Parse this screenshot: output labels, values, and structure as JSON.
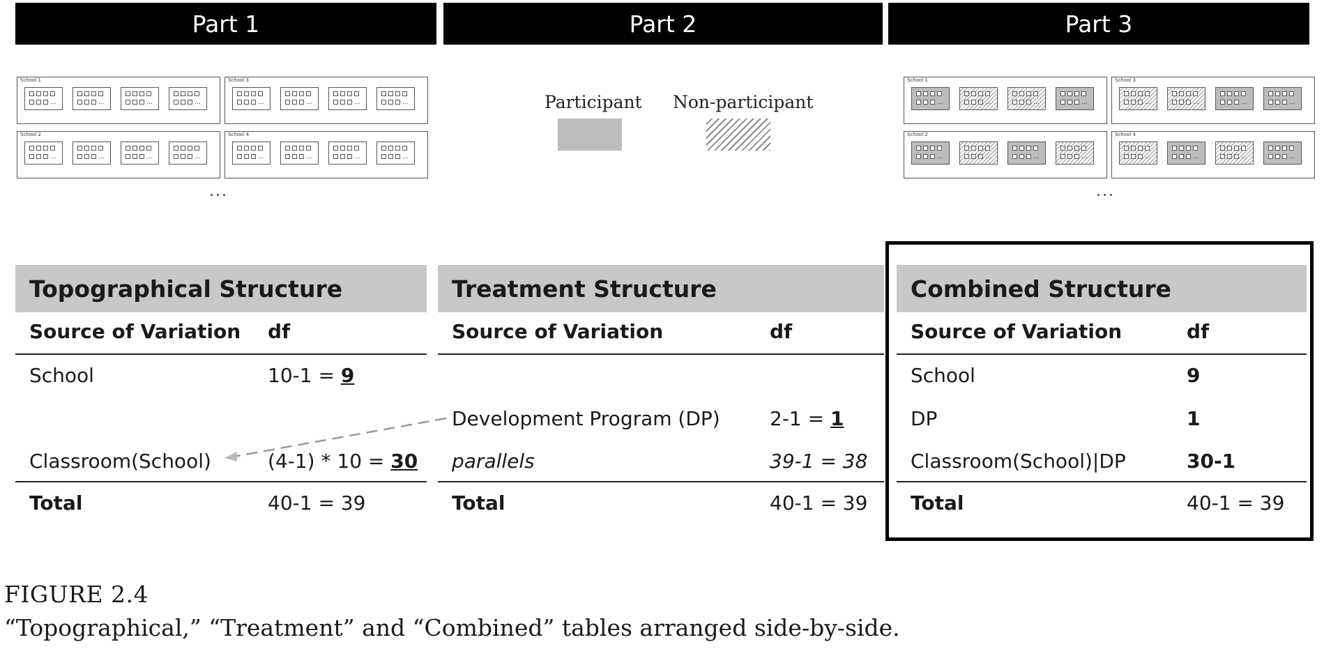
{
  "parts": [
    "Part 1",
    "Part 2",
    "Part 3"
  ],
  "schools": {
    "labels": [
      "School 1",
      "School 3",
      "School 2",
      "School 4"
    ],
    "ellipsis": "...",
    "class_more": "..."
  },
  "legend": {
    "participant": "Participant",
    "non_participant": "Non-participant"
  },
  "part3_patterns": [
    [
      "part",
      "non",
      "non",
      "part"
    ],
    [
      "non",
      "non",
      "part",
      "part"
    ],
    [
      "part",
      "non",
      "part",
      "non"
    ],
    [
      "non",
      "part",
      "non",
      "part"
    ]
  ],
  "tables": {
    "topographical": {
      "title": "Topographical Structure",
      "col1": "Source of Variation",
      "col2": "df",
      "row_school": {
        "source": "School",
        "df_pre": "10-1 = ",
        "df_val": "9"
      },
      "row_classroom": {
        "source": "Classroom(School)",
        "df_pre": "(4-1) * 10 = ",
        "df_val": "30"
      },
      "total": {
        "source": "Total",
        "df": "40-1 = 39"
      }
    },
    "treatment": {
      "title": "Treatment Structure",
      "col1": "Source of Variation",
      "col2": "df",
      "row_dp": {
        "source": "Development Program (DP)",
        "df_pre": "2-1 = ",
        "df_val": "1"
      },
      "row_parallels": {
        "source": "parallels",
        "df": "39-1 = 38"
      },
      "total": {
        "source": "Total",
        "df": "40-1 = 39"
      }
    },
    "combined": {
      "title": "Combined Structure",
      "col1": "Source of Variation",
      "col2": "df",
      "row_school": {
        "source": "School",
        "df": "9"
      },
      "row_dp": {
        "source": "DP",
        "df": "1"
      },
      "row_classroom": {
        "source": "Classroom(School)|DP",
        "df": "30-1"
      },
      "total": {
        "source": "Total",
        "df": "40-1 = 39"
      }
    }
  },
  "figure": {
    "number": "FIGURE 2.4",
    "caption": "“Topographical,” “Treatment” and “Combined” tables arranged side-by-side."
  }
}
